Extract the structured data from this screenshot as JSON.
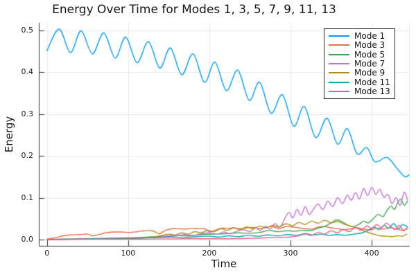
{
  "chart_data": {
    "type": "line",
    "title": "Energy Over Time for Modes 1, 3, 5, 7, 9, 11, 13",
    "xlabel": "Time",
    "ylabel": "Energy",
    "xlim": [
      -10,
      446
    ],
    "ylim": [
      -0.015,
      0.518
    ],
    "x_tick_values": [
      0,
      100,
      200,
      300,
      400
    ],
    "x_tick_labels": [
      "0",
      "100",
      "200",
      "300",
      "400"
    ],
    "y_tick_values": [
      0.0,
      0.1,
      0.2,
      0.3,
      0.4,
      0.5
    ],
    "y_tick_labels": [
      "0.0",
      "0.1",
      "0.2",
      "0.3",
      "0.4",
      "0.5"
    ],
    "grid": true,
    "legend_position": "top-right",
    "colors": {
      "background": "#ffffff",
      "grid": "#e8e8e8",
      "axis": "#2f2f33",
      "text": "#17171b",
      "legend_border": "#2a2a2e"
    },
    "series": [
      {
        "name": "Mode 1",
        "color": "#009AFA",
        "points": [
          [
            0,
            0.451
          ],
          [
            15,
            0.503
          ],
          [
            29,
            0.447
          ],
          [
            42,
            0.499
          ],
          [
            56,
            0.444
          ],
          [
            70,
            0.494
          ],
          [
            84,
            0.434
          ],
          [
            97,
            0.484
          ],
          [
            111,
            0.423
          ],
          [
            125,
            0.473
          ],
          [
            139,
            0.41
          ],
          [
            152,
            0.458
          ],
          [
            166,
            0.394
          ],
          [
            180,
            0.444
          ],
          [
            194,
            0.376
          ],
          [
            207,
            0.424
          ],
          [
            221,
            0.356
          ],
          [
            235,
            0.405
          ],
          [
            249,
            0.333
          ],
          [
            262,
            0.376
          ],
          [
            276,
            0.302
          ],
          [
            290,
            0.346
          ],
          [
            304,
            0.271
          ],
          [
            317,
            0.318
          ],
          [
            331,
            0.244
          ],
          [
            345,
            0.29
          ],
          [
            358,
            0.228
          ],
          [
            370,
            0.265
          ],
          [
            382,
            0.205
          ],
          [
            394,
            0.22
          ],
          [
            404,
            0.186
          ],
          [
            419,
            0.196
          ],
          [
            432,
            0.168
          ],
          [
            441,
            0.15
          ],
          [
            446,
            0.155
          ]
        ]
      },
      {
        "name": "Mode 3",
        "color": "#E36F47",
        "points": [
          [
            0,
            0.001
          ],
          [
            10,
            0.004
          ],
          [
            20,
            0.009
          ],
          [
            30,
            0.011
          ],
          [
            40,
            0.012
          ],
          [
            50,
            0.013
          ],
          [
            56,
            0.009
          ],
          [
            64,
            0.012
          ],
          [
            72,
            0.016
          ],
          [
            82,
            0.018
          ],
          [
            92,
            0.018
          ],
          [
            102,
            0.017
          ],
          [
            112,
            0.019
          ],
          [
            120,
            0.021
          ],
          [
            130,
            0.021
          ],
          [
            138,
            0.014
          ],
          [
            146,
            0.022
          ],
          [
            154,
            0.026
          ],
          [
            162,
            0.026
          ],
          [
            170,
            0.025
          ],
          [
            178,
            0.027
          ],
          [
            186,
            0.026
          ],
          [
            194,
            0.026
          ],
          [
            200,
            0.019
          ],
          [
            207,
            0.022
          ],
          [
            214,
            0.027
          ],
          [
            222,
            0.027
          ],
          [
            230,
            0.028
          ],
          [
            238,
            0.026
          ],
          [
            246,
            0.028
          ],
          [
            254,
            0.029
          ],
          [
            262,
            0.026
          ],
          [
            270,
            0.029
          ],
          [
            278,
            0.031
          ],
          [
            286,
            0.026
          ],
          [
            294,
            0.031
          ],
          [
            302,
            0.03
          ],
          [
            310,
            0.028
          ],
          [
            318,
            0.026
          ],
          [
            326,
            0.025
          ],
          [
            334,
            0.03
          ],
          [
            342,
            0.031
          ],
          [
            350,
            0.028
          ],
          [
            358,
            0.026
          ],
          [
            366,
            0.023
          ],
          [
            374,
            0.026
          ],
          [
            382,
            0.028
          ],
          [
            390,
            0.025
          ],
          [
            398,
            0.023
          ],
          [
            406,
            0.027
          ],
          [
            414,
            0.025
          ],
          [
            422,
            0.028
          ],
          [
            430,
            0.026
          ],
          [
            437,
            0.022
          ],
          [
            444,
            0.026
          ]
        ]
      },
      {
        "name": "Mode 5",
        "color": "#3DA44D",
        "points": [
          [
            0,
            0.0
          ],
          [
            25,
            0.001
          ],
          [
            50,
            0.002
          ],
          [
            75,
            0.003
          ],
          [
            100,
            0.004
          ],
          [
            125,
            0.006
          ],
          [
            145,
            0.008
          ],
          [
            160,
            0.01
          ],
          [
            175,
            0.009
          ],
          [
            190,
            0.012
          ],
          [
            205,
            0.013
          ],
          [
            220,
            0.014
          ],
          [
            235,
            0.016
          ],
          [
            250,
            0.015
          ],
          [
            262,
            0.017
          ],
          [
            273,
            0.022
          ],
          [
            284,
            0.019
          ],
          [
            295,
            0.021
          ],
          [
            305,
            0.02
          ],
          [
            315,
            0.022
          ],
          [
            325,
            0.021
          ],
          [
            335,
            0.028
          ],
          [
            343,
            0.032
          ],
          [
            350,
            0.04
          ],
          [
            357,
            0.047
          ],
          [
            364,
            0.042
          ],
          [
            370,
            0.035
          ],
          [
            377,
            0.031
          ],
          [
            384,
            0.036
          ],
          [
            390,
            0.044
          ],
          [
            396,
            0.04
          ],
          [
            402,
            0.05
          ],
          [
            408,
            0.06
          ],
          [
            414,
            0.055
          ],
          [
            419,
            0.07
          ],
          [
            424,
            0.08
          ],
          [
            428,
            0.072
          ],
          [
            432,
            0.088
          ],
          [
            436,
            0.096
          ],
          [
            440,
            0.082
          ],
          [
            444,
            0.092
          ]
        ]
      },
      {
        "name": "Mode 7",
        "color": "#C371D2",
        "points": [
          [
            0,
            0.0
          ],
          [
            30,
            0.001
          ],
          [
            60,
            0.001
          ],
          [
            90,
            0.002
          ],
          [
            110,
            0.003
          ],
          [
            130,
            0.005
          ],
          [
            145,
            0.007
          ],
          [
            158,
            0.009
          ],
          [
            170,
            0.012
          ],
          [
            180,
            0.01
          ],
          [
            190,
            0.014
          ],
          [
            200,
            0.016
          ],
          [
            210,
            0.013
          ],
          [
            218,
            0.018
          ],
          [
            226,
            0.014
          ],
          [
            234,
            0.02
          ],
          [
            242,
            0.024
          ],
          [
            250,
            0.019
          ],
          [
            257,
            0.028
          ],
          [
            263,
            0.022
          ],
          [
            269,
            0.032
          ],
          [
            275,
            0.025
          ],
          [
            281,
            0.038
          ],
          [
            287,
            0.03
          ],
          [
            293,
            0.05
          ],
          [
            298,
            0.065
          ],
          [
            303,
            0.052
          ],
          [
            308,
            0.072
          ],
          [
            313,
            0.058
          ],
          [
            318,
            0.078
          ],
          [
            323,
            0.06
          ],
          [
            328,
            0.072
          ],
          [
            334,
            0.085
          ],
          [
            340,
            0.072
          ],
          [
            346,
            0.092
          ],
          [
            352,
            0.079
          ],
          [
            358,
            0.1
          ],
          [
            364,
            0.086
          ],
          [
            370,
            0.106
          ],
          [
            375,
            0.094
          ],
          [
            380,
            0.112
          ],
          [
            385,
            0.097
          ],
          [
            390,
            0.122
          ],
          [
            395,
            0.105
          ],
          [
            400,
            0.125
          ],
          [
            405,
            0.108
          ],
          [
            410,
            0.12
          ],
          [
            415,
            0.101
          ],
          [
            420,
            0.108
          ],
          [
            425,
            0.086
          ],
          [
            430,
            0.1
          ],
          [
            435,
            0.082
          ],
          [
            440,
            0.113
          ],
          [
            444,
            0.095
          ]
        ]
      },
      {
        "name": "Mode 9",
        "color": "#AC8D18",
        "points": [
          [
            0,
            0.0
          ],
          [
            40,
            0.001
          ],
          [
            80,
            0.001
          ],
          [
            110,
            0.003
          ],
          [
            125,
            0.005
          ],
          [
            140,
            0.009
          ],
          [
            150,
            0.013
          ],
          [
            158,
            0.011
          ],
          [
            166,
            0.016
          ],
          [
            174,
            0.013
          ],
          [
            182,
            0.019
          ],
          [
            190,
            0.016
          ],
          [
            198,
            0.022
          ],
          [
            206,
            0.019
          ],
          [
            214,
            0.026
          ],
          [
            222,
            0.022
          ],
          [
            230,
            0.028
          ],
          [
            238,
            0.024
          ],
          [
            246,
            0.03
          ],
          [
            254,
            0.026
          ],
          [
            262,
            0.032
          ],
          [
            270,
            0.028
          ],
          [
            278,
            0.034
          ],
          [
            286,
            0.03
          ],
          [
            294,
            0.038
          ],
          [
            302,
            0.033
          ],
          [
            310,
            0.041
          ],
          [
            318,
            0.036
          ],
          [
            326,
            0.044
          ],
          [
            334,
            0.039
          ],
          [
            342,
            0.046
          ],
          [
            350,
            0.04
          ],
          [
            358,
            0.043
          ],
          [
            366,
            0.037
          ],
          [
            374,
            0.032
          ],
          [
            382,
            0.027
          ],
          [
            390,
            0.021
          ],
          [
            397,
            0.016
          ],
          [
            404,
            0.012
          ],
          [
            411,
            0.009
          ],
          [
            418,
            0.008
          ],
          [
            425,
            0.007
          ],
          [
            432,
            0.009
          ],
          [
            438,
            0.008
          ],
          [
            443,
            0.013
          ]
        ]
      },
      {
        "name": "Mode 11",
        "color": "#00A9AD",
        "points": [
          [
            0,
            0.0
          ],
          [
            30,
            0.001
          ],
          [
            60,
            0.002
          ],
          [
            90,
            0.003
          ],
          [
            120,
            0.004
          ],
          [
            140,
            0.005
          ],
          [
            155,
            0.006
          ],
          [
            170,
            0.005
          ],
          [
            185,
            0.007
          ],
          [
            200,
            0.008
          ],
          [
            212,
            0.006
          ],
          [
            224,
            0.009
          ],
          [
            236,
            0.007
          ],
          [
            248,
            0.01
          ],
          [
            260,
            0.008
          ],
          [
            272,
            0.011
          ],
          [
            284,
            0.009
          ],
          [
            296,
            0.012
          ],
          [
            308,
            0.01
          ],
          [
            318,
            0.014
          ],
          [
            328,
            0.011
          ],
          [
            338,
            0.013
          ],
          [
            348,
            0.01
          ],
          [
            358,
            0.012
          ],
          [
            368,
            0.01
          ],
          [
            378,
            0.013
          ],
          [
            388,
            0.016
          ],
          [
            396,
            0.022
          ],
          [
            403,
            0.03
          ],
          [
            409,
            0.024
          ],
          [
            415,
            0.034
          ],
          [
            421,
            0.027
          ],
          [
            427,
            0.038
          ],
          [
            433,
            0.026
          ],
          [
            438,
            0.036
          ],
          [
            444,
            0.03
          ]
        ]
      },
      {
        "name": "Mode 13",
        "color": "#ED5D92",
        "points": [
          [
            0,
            0.0
          ],
          [
            60,
            0.001
          ],
          [
            120,
            0.001
          ],
          [
            180,
            0.002
          ],
          [
            220,
            0.002
          ],
          [
            250,
            0.003
          ],
          [
            268,
            0.004
          ],
          [
            285,
            0.005
          ],
          [
            300,
            0.006
          ],
          [
            310,
            0.009
          ],
          [
            318,
            0.013
          ],
          [
            326,
            0.01
          ],
          [
            334,
            0.017
          ],
          [
            342,
            0.013
          ],
          [
            350,
            0.021
          ],
          [
            358,
            0.016
          ],
          [
            365,
            0.025
          ],
          [
            372,
            0.019
          ],
          [
            380,
            0.029
          ],
          [
            387,
            0.022
          ],
          [
            394,
            0.033
          ],
          [
            400,
            0.026
          ],
          [
            406,
            0.036
          ],
          [
            412,
            0.028
          ],
          [
            418,
            0.039
          ],
          [
            424,
            0.03
          ],
          [
            429,
            0.024
          ],
          [
            434,
            0.034
          ],
          [
            439,
            0.021
          ],
          [
            444,
            0.029
          ]
        ]
      }
    ]
  }
}
